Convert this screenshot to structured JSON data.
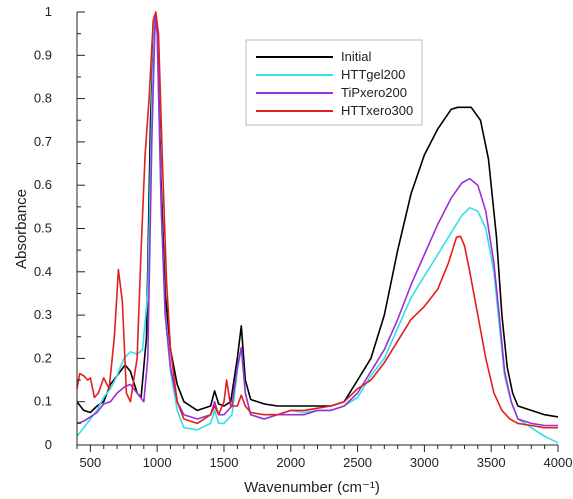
{
  "chart_data": {
    "type": "line",
    "title": "",
    "xlabel": "Wavenumber (cm⁻¹)",
    "ylabel": "Absorbance",
    "xlim": [
      400,
      4000
    ],
    "ylim": [
      0,
      1
    ],
    "xticks": [
      500,
      1000,
      1500,
      2000,
      2500,
      3000,
      3500,
      4000
    ],
    "yticks": [
      0,
      0.1,
      0.2,
      0.3,
      0.4,
      0.5,
      0.6,
      0.7,
      0.8,
      0.9,
      1
    ],
    "yticklabels": [
      "0",
      "0.1",
      "0.2",
      "0.3",
      "0.4",
      "0.5",
      "0.6",
      "0.7",
      "0.8",
      "0.9",
      "1"
    ],
    "grid": false,
    "legend_position": "top-right",
    "series": [
      {
        "name": "Initial",
        "color": "#000000",
        "points": [
          [
            400,
            0.1
          ],
          [
            450,
            0.08
          ],
          [
            500,
            0.075
          ],
          [
            550,
            0.09
          ],
          [
            600,
            0.1
          ],
          [
            650,
            0.14
          ],
          [
            700,
            0.16
          ],
          [
            760,
            0.185
          ],
          [
            800,
            0.17
          ],
          [
            850,
            0.12
          ],
          [
            880,
            0.11
          ],
          [
            920,
            0.25
          ],
          [
            950,
            0.75
          ],
          [
            980,
            0.99
          ],
          [
            1000,
            0.96
          ],
          [
            1030,
            0.6
          ],
          [
            1060,
            0.35
          ],
          [
            1100,
            0.22
          ],
          [
            1150,
            0.14
          ],
          [
            1200,
            0.1
          ],
          [
            1300,
            0.08
          ],
          [
            1400,
            0.09
          ],
          [
            1430,
            0.125
          ],
          [
            1460,
            0.095
          ],
          [
            1500,
            0.09
          ],
          [
            1550,
            0.1
          ],
          [
            1600,
            0.2
          ],
          [
            1630,
            0.275
          ],
          [
            1660,
            0.15
          ],
          [
            1700,
            0.105
          ],
          [
            1800,
            0.095
          ],
          [
            1900,
            0.09
          ],
          [
            2000,
            0.09
          ],
          [
            2100,
            0.09
          ],
          [
            2200,
            0.09
          ],
          [
            2300,
            0.09
          ],
          [
            2400,
            0.1
          ],
          [
            2500,
            0.15
          ],
          [
            2600,
            0.2
          ],
          [
            2700,
            0.3
          ],
          [
            2800,
            0.45
          ],
          [
            2900,
            0.58
          ],
          [
            3000,
            0.67
          ],
          [
            3100,
            0.73
          ],
          [
            3200,
            0.775
          ],
          [
            3250,
            0.78
          ],
          [
            3350,
            0.78
          ],
          [
            3420,
            0.75
          ],
          [
            3480,
            0.66
          ],
          [
            3540,
            0.48
          ],
          [
            3580,
            0.3
          ],
          [
            3620,
            0.18
          ],
          [
            3660,
            0.12
          ],
          [
            3700,
            0.09
          ],
          [
            3800,
            0.08
          ],
          [
            3900,
            0.07
          ],
          [
            4000,
            0.065
          ]
        ]
      },
      {
        "name": "HTTgel200",
        "color": "#33e0e6",
        "points": [
          [
            400,
            0.02
          ],
          [
            450,
            0.04
          ],
          [
            500,
            0.06
          ],
          [
            550,
            0.08
          ],
          [
            600,
            0.11
          ],
          [
            650,
            0.13
          ],
          [
            700,
            0.16
          ],
          [
            750,
            0.2
          ],
          [
            800,
            0.215
          ],
          [
            850,
            0.21
          ],
          [
            890,
            0.22
          ],
          [
            930,
            0.35
          ],
          [
            960,
            0.78
          ],
          [
            980,
            0.985
          ],
          [
            1000,
            0.95
          ],
          [
            1030,
            0.55
          ],
          [
            1060,
            0.3
          ],
          [
            1100,
            0.17
          ],
          [
            1150,
            0.08
          ],
          [
            1200,
            0.04
          ],
          [
            1300,
            0.035
          ],
          [
            1400,
            0.05
          ],
          [
            1430,
            0.08
          ],
          [
            1460,
            0.05
          ],
          [
            1500,
            0.05
          ],
          [
            1560,
            0.07
          ],
          [
            1600,
            0.17
          ],
          [
            1630,
            0.225
          ],
          [
            1660,
            0.12
          ],
          [
            1700,
            0.07
          ],
          [
            1800,
            0.06
          ],
          [
            1900,
            0.07
          ],
          [
            2000,
            0.08
          ],
          [
            2100,
            0.075
          ],
          [
            2200,
            0.08
          ],
          [
            2300,
            0.08
          ],
          [
            2400,
            0.09
          ],
          [
            2500,
            0.11
          ],
          [
            2600,
            0.16
          ],
          [
            2700,
            0.2
          ],
          [
            2800,
            0.27
          ],
          [
            2900,
            0.34
          ],
          [
            3000,
            0.39
          ],
          [
            3100,
            0.44
          ],
          [
            3200,
            0.49
          ],
          [
            3280,
            0.53
          ],
          [
            3340,
            0.548
          ],
          [
            3400,
            0.54
          ],
          [
            3460,
            0.5
          ],
          [
            3520,
            0.4
          ],
          [
            3560,
            0.28
          ],
          [
            3600,
            0.16
          ],
          [
            3650,
            0.1
          ],
          [
            3700,
            0.06
          ],
          [
            3800,
            0.04
          ],
          [
            3900,
            0.02
          ],
          [
            4000,
            0.005
          ]
        ]
      },
      {
        "name": "TiPxero200",
        "color": "#9b30d9",
        "points": [
          [
            400,
            0.05
          ],
          [
            450,
            0.055
          ],
          [
            500,
            0.065
          ],
          [
            550,
            0.075
          ],
          [
            600,
            0.095
          ],
          [
            650,
            0.1
          ],
          [
            700,
            0.12
          ],
          [
            760,
            0.135
          ],
          [
            800,
            0.14
          ],
          [
            850,
            0.12
          ],
          [
            900,
            0.1
          ],
          [
            930,
            0.2
          ],
          [
            960,
            0.7
          ],
          [
            985,
            0.99
          ],
          [
            1000,
            0.95
          ],
          [
            1030,
            0.55
          ],
          [
            1060,
            0.3
          ],
          [
            1100,
            0.18
          ],
          [
            1150,
            0.1
          ],
          [
            1200,
            0.07
          ],
          [
            1300,
            0.06
          ],
          [
            1400,
            0.07
          ],
          [
            1430,
            0.1
          ],
          [
            1460,
            0.07
          ],
          [
            1500,
            0.07
          ],
          [
            1560,
            0.09
          ],
          [
            1600,
            0.18
          ],
          [
            1630,
            0.225
          ],
          [
            1660,
            0.12
          ],
          [
            1700,
            0.07
          ],
          [
            1800,
            0.06
          ],
          [
            1900,
            0.07
          ],
          [
            2000,
            0.07
          ],
          [
            2100,
            0.07
          ],
          [
            2200,
            0.08
          ],
          [
            2300,
            0.08
          ],
          [
            2400,
            0.09
          ],
          [
            2500,
            0.12
          ],
          [
            2600,
            0.17
          ],
          [
            2700,
            0.22
          ],
          [
            2800,
            0.29
          ],
          [
            2900,
            0.37
          ],
          [
            3000,
            0.44
          ],
          [
            3100,
            0.51
          ],
          [
            3200,
            0.57
          ],
          [
            3280,
            0.605
          ],
          [
            3340,
            0.615
          ],
          [
            3400,
            0.6
          ],
          [
            3460,
            0.54
          ],
          [
            3520,
            0.42
          ],
          [
            3560,
            0.3
          ],
          [
            3600,
            0.17
          ],
          [
            3650,
            0.1
          ],
          [
            3700,
            0.06
          ],
          [
            3800,
            0.05
          ],
          [
            3900,
            0.045
          ],
          [
            4000,
            0.045
          ]
        ]
      },
      {
        "name": "HTTxero300",
        "color": "#e01f1f",
        "points": [
          [
            400,
            0.13
          ],
          [
            420,
            0.165
          ],
          [
            450,
            0.16
          ],
          [
            480,
            0.15
          ],
          [
            500,
            0.155
          ],
          [
            530,
            0.11
          ],
          [
            560,
            0.12
          ],
          [
            600,
            0.155
          ],
          [
            640,
            0.13
          ],
          [
            680,
            0.25
          ],
          [
            710,
            0.405
          ],
          [
            740,
            0.33
          ],
          [
            770,
            0.12
          ],
          [
            800,
            0.1
          ],
          [
            850,
            0.2
          ],
          [
            880,
            0.45
          ],
          [
            910,
            0.67
          ],
          [
            940,
            0.8
          ],
          [
            970,
            0.98
          ],
          [
            990,
            1.0
          ],
          [
            1010,
            0.95
          ],
          [
            1040,
            0.65
          ],
          [
            1070,
            0.38
          ],
          [
            1100,
            0.22
          ],
          [
            1150,
            0.1
          ],
          [
            1200,
            0.06
          ],
          [
            1300,
            0.05
          ],
          [
            1400,
            0.07
          ],
          [
            1430,
            0.09
          ],
          [
            1460,
            0.07
          ],
          [
            1500,
            0.1
          ],
          [
            1520,
            0.15
          ],
          [
            1550,
            0.09
          ],
          [
            1600,
            0.09
          ],
          [
            1630,
            0.115
          ],
          [
            1660,
            0.09
          ],
          [
            1700,
            0.075
          ],
          [
            1800,
            0.07
          ],
          [
            1900,
            0.07
          ],
          [
            2000,
            0.08
          ],
          [
            2100,
            0.08
          ],
          [
            2200,
            0.085
          ],
          [
            2300,
            0.09
          ],
          [
            2400,
            0.1
          ],
          [
            2500,
            0.13
          ],
          [
            2600,
            0.15
          ],
          [
            2700,
            0.19
          ],
          [
            2800,
            0.24
          ],
          [
            2900,
            0.29
          ],
          [
            3000,
            0.32
          ],
          [
            3100,
            0.36
          ],
          [
            3180,
            0.42
          ],
          [
            3240,
            0.48
          ],
          [
            3270,
            0.482
          ],
          [
            3300,
            0.46
          ],
          [
            3340,
            0.4
          ],
          [
            3400,
            0.3
          ],
          [
            3460,
            0.2
          ],
          [
            3520,
            0.12
          ],
          [
            3580,
            0.08
          ],
          [
            3640,
            0.06
          ],
          [
            3700,
            0.05
          ],
          [
            3800,
            0.045
          ],
          [
            3900,
            0.04
          ],
          [
            4000,
            0.04
          ]
        ]
      }
    ]
  }
}
